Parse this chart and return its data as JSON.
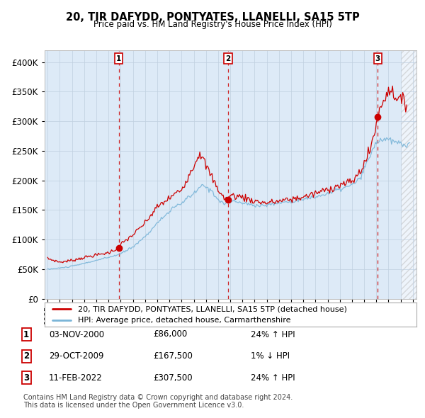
{
  "title": "20, TIR DAFYDD, PONTYATES, LLANELLI, SA15 5TP",
  "subtitle": "Price paid vs. HM Land Registry's House Price Index (HPI)",
  "legend_line1": "20, TIR DAFYDD, PONTYATES, LLANELLI, SA15 5TP (detached house)",
  "legend_line2": "HPI: Average price, detached house, Carmarthenshire",
  "transactions": [
    {
      "num": 1,
      "date": "03-NOV-2000",
      "price": "£86,000",
      "pct": "24%",
      "dir": "↑"
    },
    {
      "num": 2,
      "date": "29-OCT-2009",
      "price": "£167,500",
      "pct": "1%",
      "dir": "↓"
    },
    {
      "num": 3,
      "date": "11-FEB-2022",
      "price": "£307,500",
      "pct": "24%",
      "dir": "↑"
    }
  ],
  "footnote1": "Contains HM Land Registry data © Crown copyright and database right 2024.",
  "footnote2": "This data is licensed under the Open Government Licence v3.0.",
  "hpi_color": "#7ab5d8",
  "price_color": "#cc0000",
  "transaction_color": "#cc0000",
  "bg_color": "#ddeaf7",
  "grid_color": "#c0d0e0",
  "ylim": [
    0,
    420000
  ],
  "yticks": [
    0,
    50000,
    100000,
    150000,
    200000,
    250000,
    300000,
    350000,
    400000
  ],
  "xlim_min": 1994.75,
  "xlim_max": 2025.3,
  "transaction_dates": [
    2000.838,
    2009.831,
    2022.115
  ],
  "transaction_prices": [
    86000,
    167500,
    307500
  ],
  "transaction_labels": [
    "1",
    "2",
    "3"
  ],
  "vline_dates": [
    2000.838,
    2009.831,
    2022.115
  ]
}
